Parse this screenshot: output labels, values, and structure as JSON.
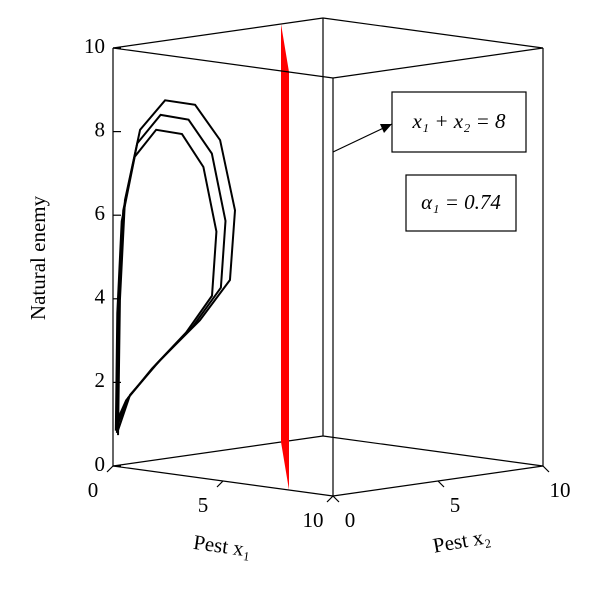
{
  "chart_data": {
    "type": "line3d",
    "x1_label": "Pest x₁",
    "x2_label": "Pest x₂",
    "z_label": "Natural enemy",
    "x1lim": [
      0,
      10
    ],
    "x2lim": [
      0,
      10
    ],
    "zlim": [
      0,
      10
    ],
    "x1ticks": [
      0,
      5,
      10
    ],
    "x2ticks": [
      0,
      5,
      10
    ],
    "zticks": [
      0,
      2,
      4,
      6,
      8,
      10
    ],
    "plane_sum": 8,
    "plane_color": "#ff0000",
    "annotations": [
      "x₁ + x₂ = 8",
      "α₁ = 0.74"
    ],
    "color": "#000000",
    "series": [
      {
        "x1": [
          0.2,
          0.2,
          0.2,
          0.2,
          0.2,
          0.2,
          0.2,
          0.2,
          0.2,
          0.2,
          0.2,
          0.2,
          0.2
        ],
        "x2": [
          0.03,
          0.12,
          0.36,
          1.08,
          2.27,
          3.7,
          4.89,
          5.6,
          5.36,
          3.93,
          2.03,
          0.6,
          0.03
        ],
        "z": [
          0.75,
          3.98,
          6.35,
          7.98,
          8.6,
          8.39,
          7.46,
          5.73,
          4.08,
          3.22,
          2.4,
          1.67,
          0.87
        ]
      },
      {
        "x1": [
          0.15,
          0.15,
          0.15,
          0.15,
          0.15,
          0.15,
          0.15,
          0.15,
          0.15,
          0.15,
          0.15,
          0.15,
          0.15
        ],
        "x2": [
          0.03,
          0.11,
          0.33,
          1.0,
          2.11,
          3.44,
          4.55,
          5.2,
          4.98,
          3.65,
          1.89,
          0.56,
          0.03
        ],
        "z": [
          0.8,
          3.82,
          6.1,
          7.66,
          8.26,
          8.05,
          7.16,
          5.5,
          3.92,
          3.09,
          2.3,
          1.6,
          0.95
        ]
      },
      {
        "x1": [
          0.1,
          0.1,
          0.1,
          0.1,
          0.1,
          0.1,
          0.1,
          0.1,
          0.1,
          0.1,
          0.1,
          0.1,
          0.1
        ],
        "x2": [
          0.03,
          0.1,
          0.31,
          0.93,
          1.95,
          3.18,
          4.2,
          4.82,
          4.61,
          3.38,
          1.75,
          0.52,
          0.03
        ],
        "z": [
          0.85,
          3.66,
          5.84,
          7.34,
          7.91,
          7.72,
          6.86,
          5.27,
          3.75,
          2.96,
          2.21,
          1.54,
          1.02
        ]
      }
    ]
  }
}
